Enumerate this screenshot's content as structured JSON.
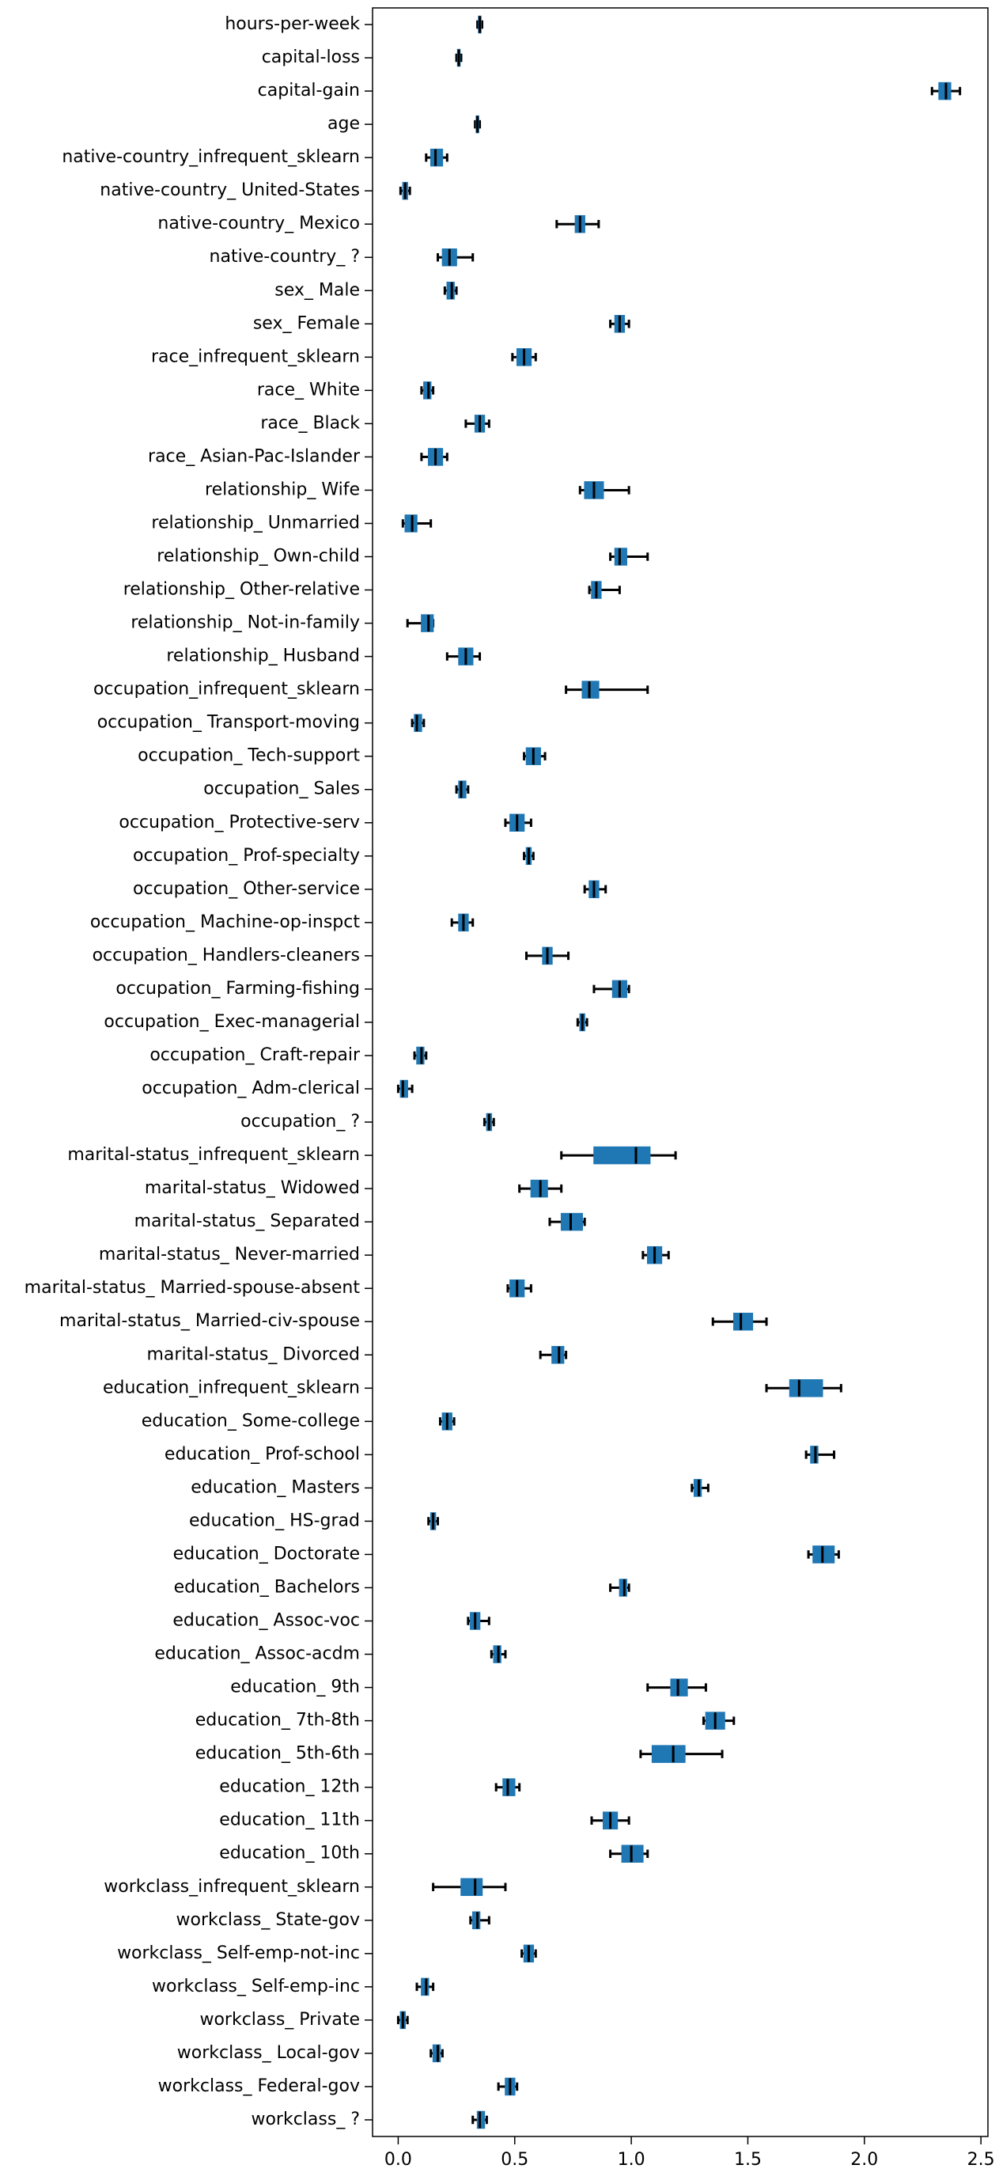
{
  "chart_data": {
    "type": "boxplot",
    "color": "#1f77b4",
    "categories": [
      "hours-per-week",
      "capital-loss",
      "capital-gain",
      "age",
      "native-country_infrequent_sklearn",
      "native-country_ United-States",
      "native-country_ Mexico",
      "native-country_ ?",
      "sex_ Male",
      "sex_ Female",
      "race_infrequent_sklearn",
      "race_ White",
      "race_ Black",
      "race_ Asian-Pac-Islander",
      "relationship_ Wife",
      "relationship_ Unmarried",
      "relationship_ Own-child",
      "relationship_ Other-relative",
      "relationship_ Not-in-family",
      "relationship_ Husband",
      "occupation_infrequent_sklearn",
      "occupation_ Transport-moving",
      "occupation_ Tech-support",
      "occupation_ Sales",
      "occupation_ Protective-serv",
      "occupation_ Prof-specialty",
      "occupation_ Other-service",
      "occupation_ Machine-op-inspct",
      "occupation_ Handlers-cleaners",
      "occupation_ Farming-fishing",
      "occupation_ Exec-managerial",
      "occupation_ Craft-repair",
      "occupation_ Adm-clerical",
      "occupation_ ?",
      "marital-status_infrequent_sklearn",
      "marital-status_ Widowed",
      "marital-status_ Separated",
      "marital-status_ Never-married",
      "marital-status_ Married-spouse-absent",
      "marital-status_ Married-civ-spouse",
      "marital-status_ Divorced",
      "education_infrequent_sklearn",
      "education_ Some-college",
      "education_ Prof-school",
      "education_ Masters",
      "education_ HS-grad",
      "education_ Doctorate",
      "education_ Bachelors",
      "education_ Assoc-voc",
      "education_ Assoc-acdm",
      "education_ 9th",
      "education_ 7th-8th",
      "education_ 5th-6th",
      "education_ 12th",
      "education_ 11th",
      "education_ 10th",
      "workclass_infrequent_sklearn",
      "workclass_ State-gov",
      "workclass_ Self-emp-not-inc",
      "workclass_ Self-emp-inc",
      "workclass_ Private",
      "workclass_ Local-gov",
      "workclass_ Federal-gov",
      "workclass_ ?"
    ],
    "whislo": [
      0.34,
      0.25,
      2.29,
      0.33,
      0.12,
      0.01,
      0.68,
      0.17,
      0.2,
      0.91,
      0.49,
      0.1,
      0.29,
      0.1,
      0.78,
      0.02,
      0.91,
      0.82,
      0.04,
      0.21,
      0.72,
      0.06,
      0.54,
      0.25,
      0.46,
      0.54,
      0.8,
      0.23,
      0.55,
      0.84,
      0.77,
      0.07,
      0.0,
      0.37,
      0.7,
      0.52,
      0.65,
      1.05,
      0.47,
      1.35,
      0.61,
      1.58,
      0.18,
      1.75,
      1.26,
      0.13,
      1.76,
      0.91,
      0.3,
      0.4,
      1.07,
      1.31,
      1.04,
      0.42,
      0.83,
      0.91,
      0.15,
      0.31,
      0.53,
      0.08,
      0.0,
      0.14,
      0.43,
      0.32
    ],
    "q1": [
      0.345,
      0.255,
      2.32,
      0.335,
      0.14,
      0.02,
      0.76,
      0.19,
      0.21,
      0.93,
      0.51,
      0.11,
      0.33,
      0.13,
      0.8,
      0.03,
      0.93,
      0.83,
      0.1,
      0.26,
      0.79,
      0.07,
      0.55,
      0.26,
      0.48,
      0.55,
      0.82,
      0.26,
      0.62,
      0.92,
      0.78,
      0.08,
      0.01,
      0.38,
      0.84,
      0.57,
      0.7,
      1.07,
      0.48,
      1.44,
      0.66,
      1.68,
      0.19,
      1.77,
      1.27,
      0.14,
      1.78,
      0.95,
      0.31,
      0.41,
      1.17,
      1.32,
      1.09,
      0.45,
      0.88,
      0.96,
      0.27,
      0.32,
      0.54,
      0.1,
      0.01,
      0.15,
      0.46,
      0.34
    ],
    "med": [
      0.35,
      0.26,
      2.35,
      0.34,
      0.16,
      0.03,
      0.78,
      0.22,
      0.23,
      0.95,
      0.54,
      0.13,
      0.35,
      0.16,
      0.84,
      0.06,
      0.95,
      0.85,
      0.13,
      0.29,
      0.82,
      0.08,
      0.58,
      0.27,
      0.51,
      0.56,
      0.84,
      0.28,
      0.64,
      0.95,
      0.79,
      0.1,
      0.02,
      0.39,
      1.02,
      0.61,
      0.74,
      1.1,
      0.51,
      1.47,
      0.69,
      1.72,
      0.21,
      1.79,
      1.29,
      0.15,
      1.82,
      0.97,
      0.33,
      0.43,
      1.2,
      1.36,
      1.18,
      0.47,
      0.91,
      1.0,
      0.33,
      0.34,
      0.56,
      0.12,
      0.02,
      0.17,
      0.48,
      0.35
    ],
    "q3": [
      0.355,
      0.265,
      2.37,
      0.345,
      0.19,
      0.04,
      0.8,
      0.25,
      0.24,
      0.97,
      0.57,
      0.14,
      0.37,
      0.19,
      0.88,
      0.08,
      0.98,
      0.87,
      0.15,
      0.32,
      0.86,
      0.1,
      0.61,
      0.29,
      0.54,
      0.57,
      0.86,
      0.3,
      0.66,
      0.98,
      0.8,
      0.11,
      0.04,
      0.4,
      1.08,
      0.64,
      0.79,
      1.13,
      0.54,
      1.52,
      0.71,
      1.82,
      0.23,
      1.8,
      1.3,
      0.16,
      1.87,
      0.98,
      0.35,
      0.44,
      1.24,
      1.4,
      1.23,
      0.5,
      0.94,
      1.05,
      0.36,
      0.35,
      0.58,
      0.13,
      0.03,
      0.18,
      0.5,
      0.37
    ],
    "whishi": [
      0.36,
      0.27,
      2.41,
      0.35,
      0.21,
      0.05,
      0.86,
      0.32,
      0.25,
      0.99,
      0.59,
      0.15,
      0.39,
      0.21,
      0.99,
      0.14,
      1.07,
      0.95,
      0.15,
      0.35,
      1.07,
      0.11,
      0.63,
      0.3,
      0.57,
      0.58,
      0.89,
      0.32,
      0.73,
      0.99,
      0.81,
      0.12,
      0.06,
      0.41,
      1.19,
      0.7,
      0.8,
      1.16,
      0.57,
      1.58,
      0.72,
      1.9,
      0.24,
      1.87,
      1.33,
      0.17,
      1.89,
      0.99,
      0.39,
      0.46,
      1.32,
      1.44,
      1.39,
      0.52,
      0.99,
      1.07,
      0.46,
      0.39,
      0.59,
      0.15,
      0.04,
      0.19,
      0.51,
      0.38
    ],
    "xlim": [
      -0.11,
      2.53
    ],
    "xticks": [
      {
        "value": 0,
        "label": "0.0"
      },
      {
        "value": 0.5,
        "label": "0.5"
      },
      {
        "value": 1,
        "label": "1.0"
      },
      {
        "value": 1.5,
        "label": "1.5"
      },
      {
        "value": 2,
        "label": "2.0"
      },
      {
        "value": 2.5,
        "label": "2.5"
      }
    ]
  }
}
